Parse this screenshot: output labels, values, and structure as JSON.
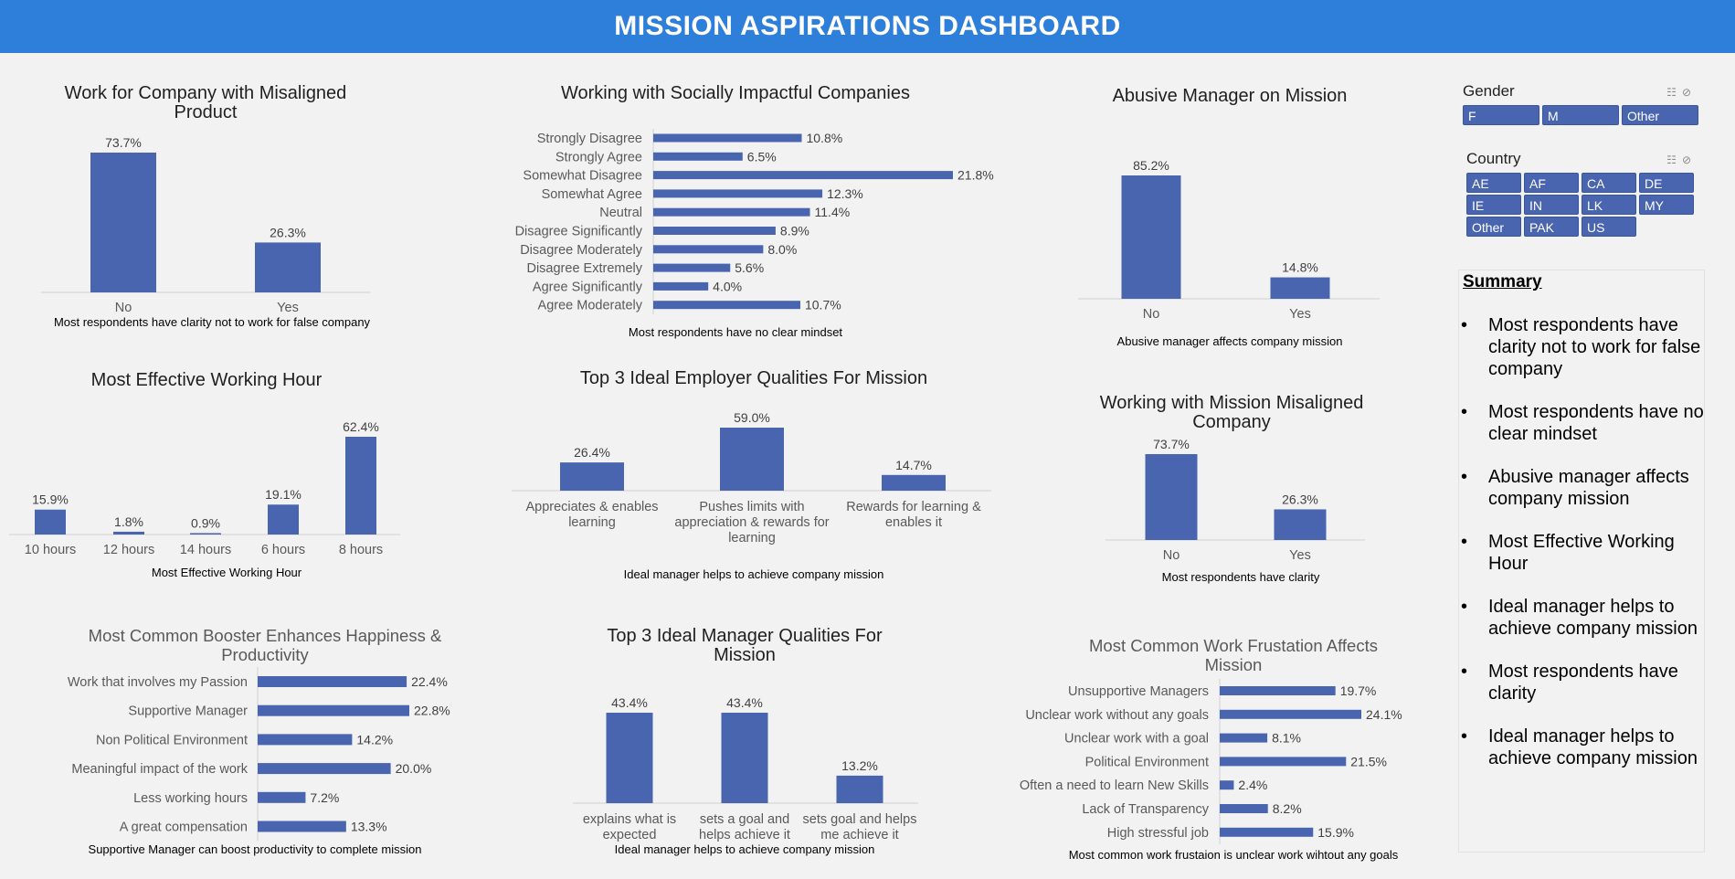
{
  "header": {
    "title": "MISSION ASPIRATIONS DASHBOARD"
  },
  "colors": {
    "header": "#2e7fd9",
    "bar": "#4965b0",
    "background": "#f2f2f2"
  },
  "slicers": {
    "gender": {
      "title": "Gender",
      "items": [
        "F",
        "M",
        "Other"
      ]
    },
    "country": {
      "title": "Country",
      "items": [
        "AE",
        "AF",
        "CA",
        "DE",
        "IE",
        "IN",
        "LK",
        "MY",
        "Other",
        "PAK",
        "US"
      ]
    },
    "icons": [
      "multi-select-icon",
      "clear-filter-icon"
    ]
  },
  "summary": {
    "title": "Summary",
    "items": [
      "Most respondents have clarity not to work for false company",
      "Most respondents have no clear mindset",
      "Abusive manager affects company mission",
      "Most Effective Working Hour",
      "Ideal manager helps to achieve company mission",
      "Most respondents have clarity",
      "Ideal manager helps to achieve company mission"
    ]
  },
  "chart_data": [
    {
      "id": "misaligned-product",
      "type": "bar",
      "title": [
        "Work for Company with Misaligned",
        "Product"
      ],
      "categories": [
        "No",
        "Yes"
      ],
      "values": [
        73.7,
        26.3
      ],
      "labels": [
        "73.7%",
        "26.3%"
      ],
      "caption": "Most respondents have clarity not to work for false company"
    },
    {
      "id": "socially-impactful",
      "type": "bar",
      "orientation": "horizontal",
      "title": [
        "Working with Socially Impactful Companies"
      ],
      "categories": [
        "Strongly Disagree",
        "Strongly Agree",
        "Somewhat Disagree",
        "Somewhat Agree",
        "Neutral",
        "Disagree Significantly",
        "Disagree Moderately",
        "Disagree Extremely",
        "Agree Significantly",
        "Agree Moderately"
      ],
      "values": [
        10.8,
        6.5,
        21.8,
        12.3,
        11.4,
        8.9,
        8.0,
        5.6,
        4.0,
        10.7
      ],
      "labels": [
        "10.8%",
        "6.5%",
        "21.8%",
        "12.3%",
        "11.4%",
        "8.9%",
        "8.0%",
        "5.6%",
        "4.0%",
        "10.7%"
      ],
      "caption": "Most respondents have no clear mindset"
    },
    {
      "id": "abusive-manager",
      "type": "bar",
      "title": [
        "Abusive Manager on Mission"
      ],
      "categories": [
        "No",
        "Yes"
      ],
      "values": [
        85.2,
        14.8
      ],
      "labels": [
        "85.2%",
        "14.8%"
      ],
      "caption": "Abusive manager affects company mission"
    },
    {
      "id": "working-hour",
      "type": "bar",
      "title": [
        "Most Effective Working Hour"
      ],
      "categories": [
        "10 hours",
        "12 hours",
        "14 hours",
        "6 hours",
        "8 hours"
      ],
      "values": [
        15.9,
        1.8,
        0.9,
        19.1,
        62.4
      ],
      "labels": [
        "15.9%",
        "1.8%",
        "0.9%",
        "19.1%",
        "62.4%"
      ],
      "caption": "Most Effective Working Hour"
    },
    {
      "id": "employer-qualities",
      "type": "bar",
      "title": [
        "Top 3 Ideal Employer Qualities For Mission"
      ],
      "categories": [
        [
          "Appreciates & enables",
          "learning"
        ],
        [
          "Pushes limits with",
          "appreciation & rewards for",
          "learning"
        ],
        [
          "Rewards for learning &",
          "enables it"
        ]
      ],
      "values": [
        26.4,
        59.0,
        14.7
      ],
      "labels": [
        "26.4%",
        "59.0%",
        "14.7%"
      ],
      "caption": "Ideal manager helps to achieve company mission"
    },
    {
      "id": "mission-misaligned",
      "type": "bar",
      "title": [
        "Working with Mission Misaligned",
        "Company"
      ],
      "categories": [
        "No",
        "Yes"
      ],
      "values": [
        73.7,
        26.3
      ],
      "labels": [
        "73.7%",
        "26.3%"
      ],
      "caption": "Most respondents have clarity"
    },
    {
      "id": "booster",
      "type": "bar",
      "orientation": "horizontal",
      "title": [
        "Most Common Booster Enhances Happiness &",
        "Productivity"
      ],
      "categories": [
        "Work that involves my Passion",
        "Supportive Manager",
        "Non Political Environment",
        "Meaningful impact of the work",
        "Less working hours",
        "A great compensation"
      ],
      "values": [
        22.4,
        22.8,
        14.2,
        20.0,
        7.2,
        13.3
      ],
      "labels": [
        "22.4%",
        "22.8%",
        "14.2%",
        "20.0%",
        "7.2%",
        "13.3%"
      ],
      "caption": "Supportive Manager can boost productivity to complete mission"
    },
    {
      "id": "manager-qualities",
      "type": "bar",
      "title": [
        "Top 3 Ideal Manager Qualities For",
        "Mission"
      ],
      "categories": [
        [
          "explains what is",
          "expected"
        ],
        [
          "sets a goal and",
          "helps achieve it"
        ],
        [
          "sets goal and helps",
          "me achieve it"
        ]
      ],
      "values": [
        43.4,
        43.4,
        13.2
      ],
      "labels": [
        "43.4%",
        "43.4%",
        "13.2%"
      ],
      "caption": "Ideal manager helps to achieve company mission"
    },
    {
      "id": "work-frustration",
      "type": "bar",
      "orientation": "horizontal",
      "title": [
        "Most Common Work Frustation Affects",
        "Mission"
      ],
      "categories": [
        "Unsupportive Managers",
        "Unclear work without any goals",
        "Unclear work with a goal",
        "Political Environment",
        "Often a need to learn New Skills",
        "Lack of Transparency",
        "High stressful job"
      ],
      "values": [
        19.7,
        24.1,
        8.1,
        21.5,
        2.4,
        8.2,
        15.9
      ],
      "labels": [
        "19.7%",
        "24.1%",
        "8.1%",
        "21.5%",
        "2.4%",
        "8.2%",
        "15.9%"
      ],
      "caption": "Most common work frustaion is unclear work wihtout any goals"
    }
  ]
}
